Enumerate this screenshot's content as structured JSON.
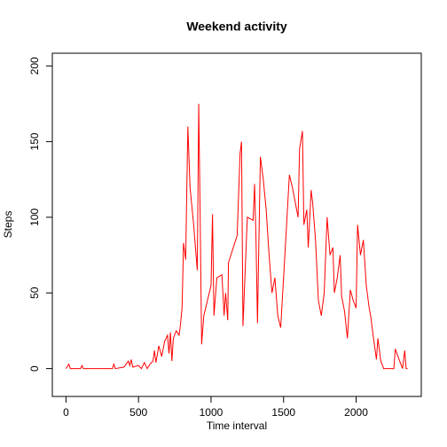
{
  "chart_data": {
    "type": "line",
    "title": "Weekend activity",
    "x_label": "Time interval",
    "y_label": "Steps",
    "x": [
      0,
      20,
      30,
      100,
      110,
      120,
      320,
      330,
      340,
      400,
      430,
      440,
      450,
      460,
      500,
      520,
      540,
      560,
      580,
      600,
      610,
      620,
      640,
      660,
      680,
      700,
      710,
      720,
      730,
      740,
      760,
      780,
      790,
      800,
      805,
      810,
      825,
      840,
      855,
      880,
      905,
      915,
      925,
      935,
      950,
      1000,
      1010,
      1020,
      1040,
      1075,
      1090,
      1100,
      1115,
      1120,
      1180,
      1200,
      1210,
      1220,
      1250,
      1290,
      1300,
      1310,
      1320,
      1340,
      1360,
      1380,
      1400,
      1420,
      1440,
      1460,
      1480,
      1500,
      1540,
      1560,
      1580,
      1600,
      1610,
      1630,
      1640,
      1660,
      1670,
      1690,
      1700,
      1720,
      1740,
      1760,
      1780,
      1800,
      1820,
      1840,
      1850,
      1870,
      1890,
      1900,
      1920,
      1940,
      1960,
      1980,
      2000,
      2010,
      2030,
      2050,
      2070,
      2090,
      2100,
      2120,
      2140,
      2150,
      2170,
      2190,
      2260,
      2270,
      2300,
      2320,
      2335,
      2345,
      2355
    ],
    "series": [
      {
        "name": "Steps",
        "color": "#ff0000",
        "values": [
          0,
          3,
          0,
          0,
          2,
          0,
          0,
          3,
          0,
          1,
          5,
          2,
          6,
          1,
          2,
          0,
          4,
          0,
          3,
          5,
          12,
          4,
          15,
          8,
          18,
          22,
          10,
          24,
          5,
          20,
          25,
          22,
          30,
          40,
          60,
          83,
          72,
          160,
          120,
          95,
          65,
          175,
          100,
          16,
          35,
          55,
          102,
          35,
          60,
          62,
          35,
          50,
          32,
          70,
          88,
          142,
          150,
          28,
          100,
          98,
          122,
          85,
          30,
          140,
          125,
          105,
          75,
          50,
          60,
          35,
          27,
          60,
          128,
          120,
          110,
          100,
          145,
          157,
          95,
          105,
          80,
          118,
          110,
          85,
          45,
          35,
          50,
          100,
          75,
          80,
          50,
          60,
          75,
          48,
          38,
          20,
          52,
          45,
          40,
          95,
          75,
          85,
          55,
          40,
          35,
          20,
          6,
          20,
          5,
          0,
          0,
          13,
          5,
          0,
          12,
          0,
          0
        ]
      }
    ],
    "xlim": [
      -94.2,
      2449.2
    ],
    "ylim": [
      -18.4,
      208.4
    ],
    "xticks": [
      0,
      500,
      1000,
      1500,
      2000
    ],
    "yticks": [
      0,
      50,
      100,
      150,
      200
    ]
  }
}
